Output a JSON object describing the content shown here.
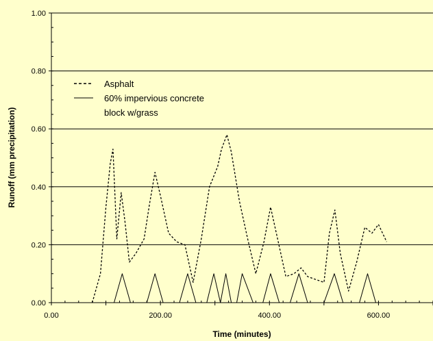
{
  "chart_data": {
    "type": "line",
    "title": "",
    "xlabel": "Time (minutes)",
    "ylabel": "Runoff (mm precipitation)",
    "xlim": [
      0,
      700
    ],
    "ylim": [
      0,
      1
    ],
    "x_ticks": [
      0,
      200,
      400,
      600
    ],
    "x_tick_labels": [
      "0.00",
      "200.00",
      "400.00",
      "600.00"
    ],
    "y_ticks": [
      0,
      0.2,
      0.4,
      0.6,
      0.8,
      1.0
    ],
    "y_tick_labels": [
      "0.00",
      "0.20",
      "0.40",
      "0.60",
      "0.80",
      "1.00"
    ],
    "grid": "horizontal",
    "legend_position": "top-left",
    "background_color": "#ffffcc",
    "series": [
      {
        "name": "Asphalt",
        "style": "dashed",
        "color": "#000000",
        "x": [
          75,
          90,
          100,
          108,
          113,
          120,
          128,
          135,
          143,
          155,
          170,
          180,
          190,
          200,
          215,
          230,
          245,
          260,
          275,
          290,
          305,
          312,
          322,
          330,
          345,
          360,
          375,
          390,
          402,
          415,
          430,
          445,
          458,
          470,
          485,
          500,
          510,
          520,
          530,
          545,
          560,
          575,
          588,
          600,
          615
        ],
        "y": [
          0.0,
          0.1,
          0.33,
          0.48,
          0.53,
          0.22,
          0.38,
          0.28,
          0.14,
          0.17,
          0.22,
          0.34,
          0.45,
          0.37,
          0.24,
          0.21,
          0.2,
          0.07,
          0.22,
          0.4,
          0.47,
          0.53,
          0.58,
          0.52,
          0.35,
          0.22,
          0.1,
          0.21,
          0.33,
          0.22,
          0.09,
          0.1,
          0.12,
          0.09,
          0.08,
          0.07,
          0.24,
          0.32,
          0.17,
          0.04,
          0.14,
          0.26,
          0.24,
          0.27,
          0.21
        ]
      },
      {
        "name": "60% impervious concrete block w/grass",
        "style": "solid",
        "color": "#000000",
        "x": [
          115,
          130,
          145,
          175,
          190,
          205,
          235,
          250,
          265,
          285,
          298,
          310,
          320,
          330,
          340,
          350,
          370,
          388,
          402,
          418,
          438,
          454,
          470,
          500,
          519,
          535,
          565,
          580,
          595
        ],
        "y": [
          0,
          0.1,
          0,
          0,
          0.1,
          0,
          0,
          0.1,
          0,
          0,
          0.1,
          0,
          0.1,
          0,
          0,
          0.1,
          0,
          0,
          0.1,
          0,
          0,
          0.1,
          0,
          0,
          0.1,
          0,
          0,
          0.1,
          0
        ]
      }
    ],
    "legend": {
      "asphalt_label": "Asphalt",
      "concrete_label_line1": "60% impervious concrete",
      "concrete_label_line2": "block w/grass"
    }
  }
}
